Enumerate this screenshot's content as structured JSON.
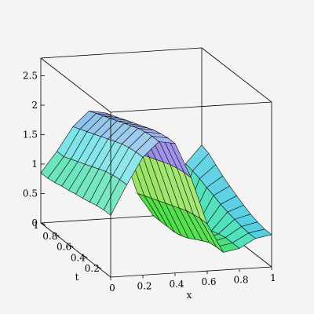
{
  "chart_data": {
    "type": "surface3d",
    "xlabel": "x",
    "ylabel": "t",
    "zlabel": "",
    "xlim": [
      0,
      1
    ],
    "ylim": [
      0,
      1
    ],
    "zlim": [
      0,
      2.8
    ],
    "x_ticks": [
      "0",
      "0.2",
      "0.4",
      "0.6",
      "0.8",
      "1"
    ],
    "t_ticks": [
      "0.2",
      "0.4",
      "0.6",
      "0.8",
      "1"
    ],
    "z_ticks": [
      "0",
      "0.5",
      "1",
      "1.5",
      "2",
      "2.5"
    ],
    "grid_x": [
      0,
      0.1,
      0.2,
      0.3,
      0.4,
      0.5,
      0.6,
      0.7,
      0.8,
      0.9,
      1.0
    ],
    "grid_t": [
      0,
      0.1,
      0.2,
      0.3,
      0.4,
      0.5,
      0.6,
      0.7,
      0.8,
      0.9,
      1.0
    ],
    "z": [
      [
        1.05,
        1.55,
        2.0,
        2.25,
        2.2,
        1.6,
        0.8,
        0.3,
        0.35,
        0.5,
        0.55
      ],
      [
        1.05,
        1.55,
        2.0,
        2.25,
        2.2,
        1.6,
        0.8,
        0.3,
        0.35,
        0.5,
        0.55
      ],
      [
        1.03,
        1.53,
        1.98,
        2.23,
        2.18,
        1.58,
        0.78,
        0.28,
        0.35,
        0.52,
        0.58
      ],
      [
        1.0,
        1.5,
        1.95,
        2.2,
        2.15,
        1.55,
        0.75,
        0.22,
        0.32,
        0.55,
        0.62
      ],
      [
        0.97,
        1.45,
        1.9,
        2.15,
        2.1,
        1.5,
        0.7,
        0.15,
        0.28,
        0.58,
        0.68
      ],
      [
        0.95,
        1.4,
        1.85,
        2.1,
        2.05,
        1.45,
        0.65,
        0.08,
        0.25,
        0.62,
        0.75
      ],
      [
        0.92,
        1.35,
        1.8,
        2.05,
        2.0,
        1.4,
        0.6,
        0.03,
        0.2,
        0.68,
        0.82
      ],
      [
        0.9,
        1.3,
        1.75,
        2.0,
        1.95,
        1.35,
        0.55,
        0.0,
        0.15,
        0.72,
        0.9
      ],
      [
        0.87,
        1.25,
        1.7,
        1.95,
        1.9,
        1.3,
        0.5,
        0.0,
        0.1,
        0.78,
        1.0
      ],
      [
        0.85,
        1.2,
        1.65,
        1.9,
        1.85,
        1.25,
        0.45,
        0.0,
        0.08,
        0.82,
        1.1
      ],
      [
        0.85,
        1.2,
        1.6,
        1.85,
        1.8,
        1.2,
        0.4,
        0.0,
        0.05,
        0.85,
        1.15
      ]
    ]
  }
}
